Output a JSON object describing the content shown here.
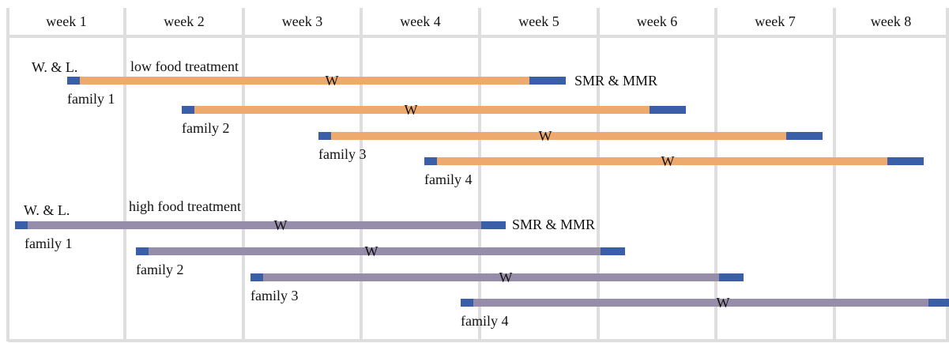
{
  "weeks": [
    "week 1",
    "week 2",
    "week 3",
    "week 4",
    "week 5",
    "week 6",
    "week 7",
    "week 8"
  ],
  "treatments": [
    {
      "label": "low food treatment",
      "start_note": "W. & L.",
      "end_note": "SMR & MMR",
      "families": [
        {
          "label": "family 1",
          "marker": "W"
        },
        {
          "label": "family 2",
          "marker": "W"
        },
        {
          "label": "family 3",
          "marker": "W"
        },
        {
          "label": "family 4",
          "marker": "W"
        }
      ]
    },
    {
      "label": "high food treatment",
      "start_note": "W. & L.",
      "end_note": "SMR & MMR",
      "families": [
        {
          "label": "family 1",
          "marker": "W"
        },
        {
          "label": "family 2",
          "marker": "W"
        },
        {
          "label": "family 3",
          "marker": "W"
        },
        {
          "label": "family 4",
          "marker": "W"
        }
      ]
    }
  ]
}
